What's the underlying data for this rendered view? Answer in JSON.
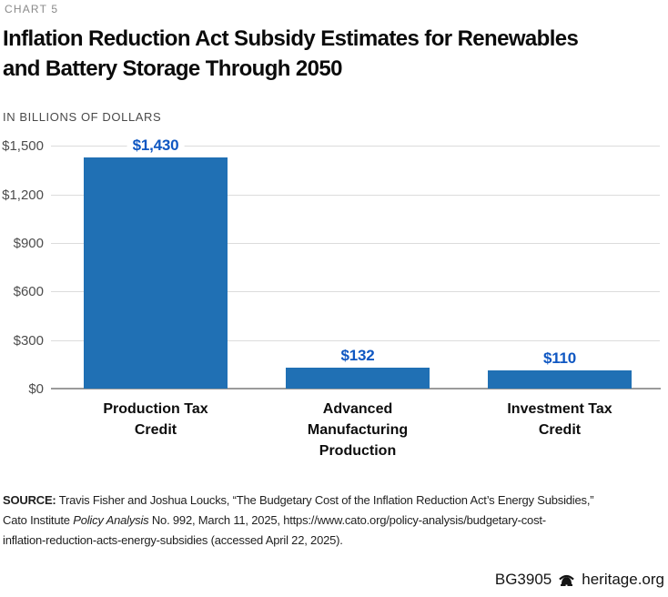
{
  "header": {
    "kicker": "CHART 5",
    "title_line1": "Inflation Reduction Act Subsidy Estimates for Renewables",
    "title_line2": "and Battery Storage Through 2050",
    "units": "IN BILLIONS OF DOLLARS"
  },
  "chart_data": {
    "type": "bar",
    "title": "Inflation Reduction Act Subsidy Estimates for Renewables and Battery Storage Through 2050",
    "units_label": "IN BILLIONS OF DOLLARS",
    "categories": [
      "Production Tax Credit",
      "Advanced Manufacturing Production",
      "Investment Tax Credit"
    ],
    "values": [
      1430,
      132,
      110
    ],
    "value_labels": [
      "$1,430",
      "$132",
      "$110"
    ],
    "ylim": [
      0,
      1500
    ],
    "ytick_interval": 300,
    "yticks": [
      "$0",
      "$300",
      "$600",
      "$900",
      "$1,200",
      "$1,500"
    ],
    "grid": true,
    "legend": "none",
    "bar_color": "#2070B4",
    "value_label_color": "#0F57C2"
  },
  "source": {
    "label": "SOURCE:",
    "line1_rest": " Travis Fisher and Joshua Loucks, “The Budgetary Cost of the Inflation Reduction Act’s Energy Subsidies,”",
    "line2_pre": "Cato Institute ",
    "line2_italic": "Policy Analysis",
    "line2_post": " No. 992, March 11, 2025, https://www.cato.org/policy-analysis/budgetary-cost-",
    "line3": "inflation-reduction-acts-energy-subsidies (accessed April 22, 2025)."
  },
  "footer": {
    "doc_id": "BG3905",
    "site": "heritage.org"
  }
}
